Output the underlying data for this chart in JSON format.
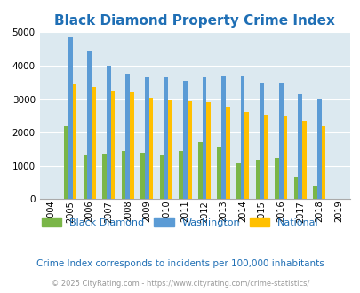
{
  "title": "Black Diamond Property Crime Index",
  "years": [
    2004,
    2005,
    2006,
    2007,
    2008,
    2009,
    2010,
    2011,
    2012,
    2013,
    2014,
    2015,
    2016,
    2017,
    2018,
    2019
  ],
  "black_diamond": [
    0,
    2200,
    1300,
    1350,
    1450,
    1400,
    1300,
    1450,
    1700,
    1570,
    1070,
    1175,
    1225,
    680,
    380,
    0
  ],
  "washington": [
    0,
    4850,
    4450,
    4000,
    3750,
    3650,
    3650,
    3550,
    3650,
    3680,
    3680,
    3500,
    3500,
    3150,
    2980,
    0
  ],
  "national": [
    0,
    3450,
    3350,
    3250,
    3200,
    3050,
    2950,
    2930,
    2900,
    2750,
    2620,
    2500,
    2470,
    2360,
    2200,
    0
  ],
  "bar_width": 0.22,
  "color_bd": "#7AB648",
  "color_wa": "#5B9BD5",
  "color_na": "#FFC000",
  "bg_color": "#DCE9F0",
  "ylim": [
    0,
    5000
  ],
  "yticks": [
    0,
    1000,
    2000,
    3000,
    4000,
    5000
  ],
  "legend_labels": [
    "Black Diamond",
    "Washington",
    "National"
  ],
  "subtitle": "Crime Index corresponds to incidents per 100,000 inhabitants",
  "footer": "© 2025 CityRating.com - https://www.cityrating.com/crime-statistics/",
  "title_color": "#1F6FB5",
  "subtitle_color": "#1F6FB5",
  "footer_color": "#999999",
  "grid_color": "#FFFFFF"
}
